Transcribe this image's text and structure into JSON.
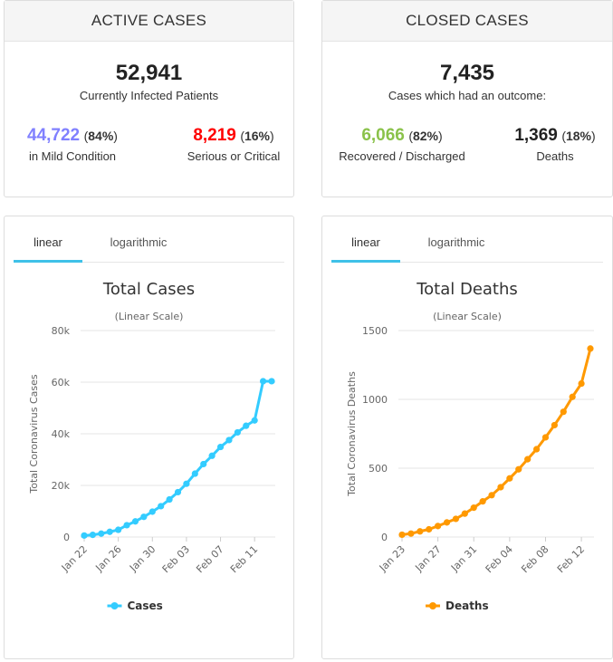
{
  "active_cases": {
    "title": "ACTIVE CASES",
    "total": "52,941",
    "total_label": "Currently Infected Patients",
    "mild": {
      "value": "44,722",
      "pct": "84%",
      "label": "in Mild Condition",
      "color": "#8080ff"
    },
    "serious": {
      "value": "8,219",
      "pct": "16%",
      "label": "Serious or Critical",
      "color": "#ff0000"
    }
  },
  "closed_cases": {
    "title": "CLOSED CASES",
    "total": "7,435",
    "total_label": "Cases which had an outcome:",
    "recovered": {
      "value": "6,066",
      "pct": "82%",
      "label": "Recovered / Discharged",
      "color": "#8ac24a"
    },
    "deaths": {
      "value": "1,369",
      "pct": "18%",
      "label": "Deaths",
      "color": "#222222"
    }
  },
  "tabs": {
    "linear": "linear",
    "logarithmic": "logarithmic"
  },
  "chart_data": [
    {
      "type": "line",
      "title": "Total Cases",
      "subtitle": "(Linear Scale)",
      "xlabel": "",
      "ylabel": "Total Coronavirus Cases",
      "ylim": [
        0,
        80000
      ],
      "yticks": [
        0,
        20000,
        40000,
        60000,
        80000
      ],
      "ytick_labels": [
        "0",
        "20k",
        "40k",
        "60k",
        "80k"
      ],
      "x": [
        "Jan 22",
        "Jan 23",
        "Jan 24",
        "Jan 25",
        "Jan 26",
        "Jan 27",
        "Jan 28",
        "Jan 29",
        "Jan 30",
        "Jan 31",
        "Feb 01",
        "Feb 02",
        "Feb 03",
        "Feb 04",
        "Feb 05",
        "Feb 06",
        "Feb 07",
        "Feb 08",
        "Feb 09",
        "Feb 10",
        "Feb 11",
        "Feb 12",
        "Feb 13"
      ],
      "xtick_labels": [
        "Jan 22",
        "Jan 26",
        "Jan 30",
        "Feb 03",
        "Feb 07",
        "Feb 11"
      ],
      "series": [
        {
          "name": "Cases",
          "color": "#33ccff",
          "values": [
            580,
            845,
            1317,
            2015,
            2800,
            4581,
            6058,
            7813,
            9823,
            11950,
            14553,
            17391,
            20630,
            24554,
            28276,
            31481,
            34886,
            37558,
            40554,
            43103,
            45171,
            60371,
            60371
          ]
        }
      ],
      "legend": "bottom-center"
    },
    {
      "type": "line",
      "title": "Total Deaths",
      "subtitle": "(Linear Scale)",
      "xlabel": "",
      "ylabel": "Total Coronavirus Deaths",
      "ylim": [
        0,
        1500
      ],
      "yticks": [
        0,
        500,
        1000,
        1500
      ],
      "ytick_labels": [
        "0",
        "500",
        "1000",
        "1500"
      ],
      "x": [
        "Jan 23",
        "Jan 24",
        "Jan 25",
        "Jan 26",
        "Jan 27",
        "Jan 28",
        "Jan 29",
        "Jan 30",
        "Jan 31",
        "Feb 01",
        "Feb 02",
        "Feb 03",
        "Feb 04",
        "Feb 05",
        "Feb 06",
        "Feb 07",
        "Feb 08",
        "Feb 09",
        "Feb 10",
        "Feb 11",
        "Feb 12",
        "Feb 13"
      ],
      "xtick_labels": [
        "Jan 23",
        "Jan 27",
        "Jan 31",
        "Feb 04",
        "Feb 08",
        "Feb 12"
      ],
      "series": [
        {
          "name": "Deaths",
          "color": "#ff9900",
          "values": [
            17,
            25,
            41,
            56,
            80,
            106,
            132,
            170,
            213,
            259,
            304,
            362,
            426,
            492,
            565,
            638,
            724,
            813,
            910,
            1018,
            1115,
            1369
          ]
        }
      ],
      "legend": "bottom-center"
    }
  ]
}
